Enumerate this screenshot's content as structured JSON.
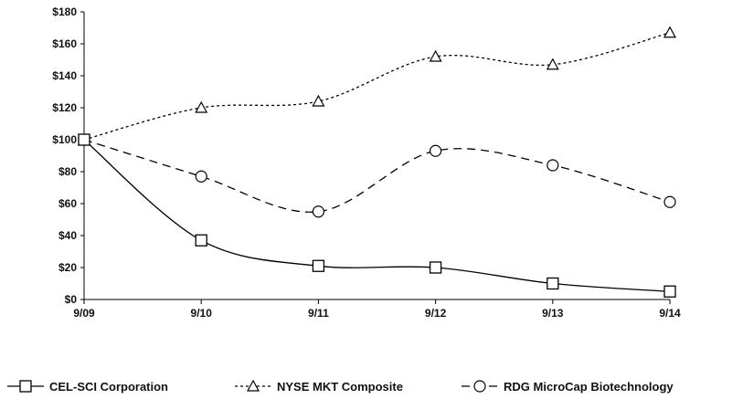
{
  "chart_data": {
    "type": "line",
    "title": "",
    "xlabel": "",
    "ylabel": "",
    "categories": [
      "9/09",
      "9/10",
      "9/11",
      "9/12",
      "9/13",
      "9/14"
    ],
    "ylim": [
      0,
      180
    ],
    "yticks": [
      "$0",
      "$20",
      "$40",
      "$60",
      "$80",
      "$100",
      "$120",
      "$140",
      "$160",
      "$180"
    ],
    "ytick_values": [
      0,
      20,
      40,
      60,
      80,
      100,
      120,
      140,
      160,
      180
    ],
    "grid": false,
    "legend_position": "bottom",
    "series": [
      {
        "name": "CEL-SCI Corporation",
        "values": [
          100,
          37,
          21,
          20,
          10,
          5
        ],
        "marker": "square",
        "dash": "solid",
        "color": "#000000"
      },
      {
        "name": "NYSE MKT Composite",
        "values": [
          100,
          120,
          124,
          152,
          147,
          167
        ],
        "marker": "triangle",
        "dash": "dotted",
        "color": "#000000"
      },
      {
        "name": "RDG MicroCap Biotechnology",
        "values": [
          100,
          77,
          55,
          93,
          84,
          61
        ],
        "marker": "circle",
        "dash": "dashed",
        "color": "#000000"
      }
    ]
  }
}
